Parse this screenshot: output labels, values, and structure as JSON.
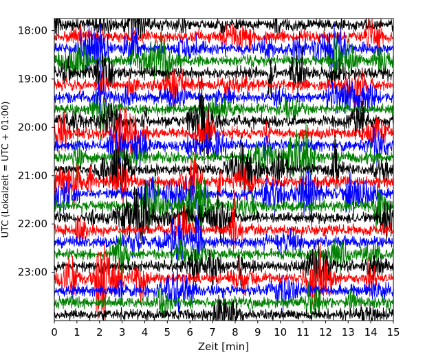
{
  "chart_data": {
    "type": "line",
    "plot_kind": "helicorder",
    "xlabel": "Zeit  [min]",
    "ylabel": "UTC (Lokalzeit = UTC + 01:00)",
    "xlim": [
      0,
      15
    ],
    "x_ticks": [
      "0",
      "1",
      "2",
      "3",
      "4",
      "5",
      "6",
      "7",
      "8",
      "9",
      "10",
      "11",
      "12",
      "13",
      "14",
      "15"
    ],
    "y_ticks": [
      "18:00",
      "19:00",
      "20:00",
      "21:00",
      "22:00",
      "23:00"
    ],
    "time_start": "17:45",
    "time_end": "24:00",
    "trace_interval_minutes": 15,
    "trace_colors": [
      "#000000",
      "#ff0000",
      "#0000ff",
      "#008000"
    ],
    "grid": false
  }
}
